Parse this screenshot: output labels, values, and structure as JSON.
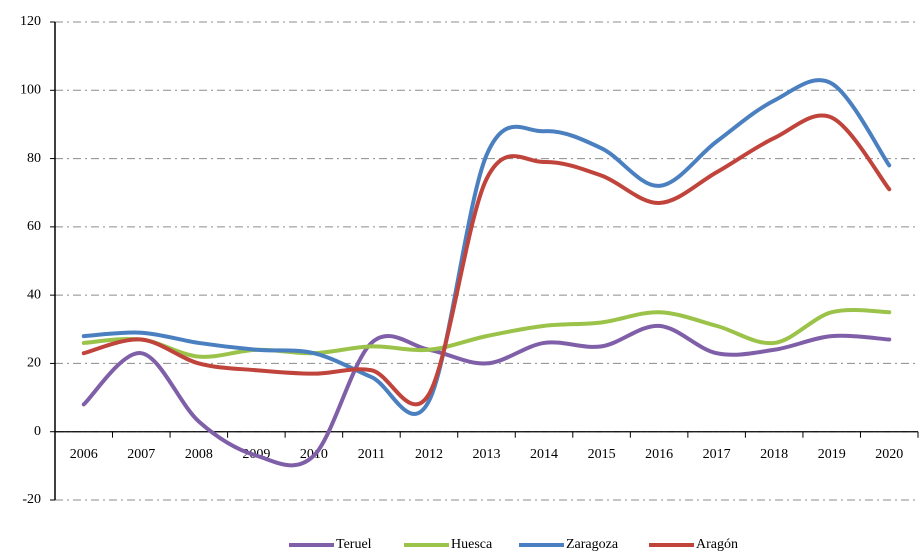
{
  "chart_data": {
    "type": "line",
    "categories": [
      "2006",
      "2007",
      "2008",
      "2009",
      "2010",
      "2011",
      "2012",
      "2013",
      "2014",
      "2015",
      "2016",
      "2017",
      "2018",
      "2019",
      "2020"
    ],
    "series": [
      {
        "name": "Teruel",
        "color": "#7f5fa8",
        "values": [
          8,
          23,
          3,
          -7,
          -7,
          26,
          24,
          20,
          26,
          25,
          31,
          23,
          24,
          28,
          27
        ]
      },
      {
        "name": "Huesca",
        "color": "#9bc34a",
        "values": [
          26,
          27,
          22,
          24,
          23,
          25,
          24,
          28,
          31,
          32,
          35,
          31,
          26,
          35,
          35
        ]
      },
      {
        "name": "Zaragoza",
        "color": "#4a7fc0",
        "values": [
          28,
          29,
          26,
          24,
          23,
          16,
          9,
          81,
          88,
          83,
          72,
          85,
          97,
          102,
          78
        ]
      },
      {
        "name": "Aragón",
        "color": "#c0443c",
        "values": [
          23,
          27,
          20,
          18,
          17,
          18,
          11,
          74,
          79,
          75,
          67,
          76,
          86,
          92,
          71
        ]
      }
    ],
    "ylim": [
      -20,
      120
    ],
    "yticks": [
      -20,
      0,
      20,
      40,
      60,
      80,
      100,
      120
    ],
    "grid": true,
    "legend": "bottom"
  }
}
